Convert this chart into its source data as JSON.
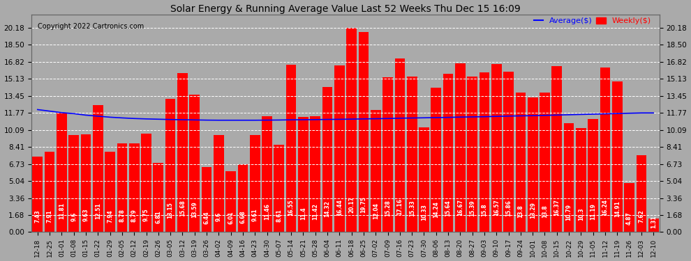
{
  "title": "Solar Energy & Running Average Value Last 52 Weeks Thu Dec 15 16:09",
  "copyright": "Copyright 2022 Cartronics.com",
  "bar_color": "#ff0000",
  "avg_line_color": "#0000ff",
  "background_color": "#aaaaaa",
  "plot_bg_color": "#aaaaaa",
  "grid_color": "#ffffff",
  "text_color": "#000000",
  "yticks": [
    0.0,
    1.68,
    3.36,
    5.04,
    6.73,
    8.41,
    10.09,
    11.77,
    13.45,
    15.13,
    16.82,
    18.5,
    20.18
  ],
  "categories": [
    "12-18",
    "12-25",
    "01-01",
    "01-08",
    "01-15",
    "01-22",
    "01-29",
    "02-05",
    "02-12",
    "02-19",
    "02-26",
    "03-05",
    "03-12",
    "03-19",
    "03-26",
    "04-02",
    "04-09",
    "04-16",
    "04-23",
    "04-30",
    "05-07",
    "05-14",
    "05-21",
    "05-28",
    "06-04",
    "06-11",
    "06-18",
    "06-25",
    "07-02",
    "07-09",
    "07-16",
    "07-23",
    "07-30",
    "08-06",
    "08-13",
    "08-20",
    "08-27",
    "09-03",
    "09-10",
    "09-17",
    "09-24",
    "10-01",
    "10-08",
    "10-15",
    "10-22",
    "10-29",
    "11-05",
    "11-12",
    "11-19",
    "11-26",
    "12-03",
    "12-10"
  ],
  "bar_values": [
    7.43,
    7.91,
    11.81,
    9.6,
    9.63,
    12.51,
    7.94,
    8.78,
    8.79,
    9.75,
    6.81,
    13.15,
    15.68,
    13.59,
    6.44,
    9.6,
    6.01,
    6.68,
    9.61,
    11.46,
    8.61,
    16.55,
    11.4,
    11.42,
    14.32,
    16.44,
    20.17,
    19.75,
    12.04,
    15.28,
    17.16,
    15.33,
    10.33,
    14.24,
    15.64,
    16.67,
    15.39,
    15.8,
    16.57,
    15.86,
    13.8,
    13.29,
    13.8,
    16.37,
    10.79,
    10.3,
    11.19,
    16.24,
    14.91,
    4.87,
    7.62,
    1.31
  ],
  "avg_values": [
    12.1,
    11.95,
    11.8,
    11.7,
    11.55,
    11.45,
    11.35,
    11.28,
    11.22,
    11.18,
    11.15,
    11.12,
    11.1,
    11.08,
    11.06,
    11.05,
    11.05,
    11.05,
    11.05,
    11.06,
    11.07,
    11.09,
    11.1,
    11.11,
    11.13,
    11.14,
    11.16,
    11.18,
    11.2,
    11.22,
    11.25,
    11.27,
    11.29,
    11.31,
    11.33,
    11.36,
    11.38,
    11.4,
    11.43,
    11.46,
    11.48,
    11.5,
    11.53,
    11.56,
    11.59,
    11.62,
    11.65,
    11.68,
    11.71,
    11.74,
    11.77,
    11.77
  ],
  "legend_avg_label": "Average($)",
  "legend_weekly_label": "Weekly($)",
  "legend_avg_color": "#0000ff",
  "legend_weekly_color": "#ff0000",
  "bar_label_fontsize": 5.5,
  "tick_fontsize": 7.5,
  "xtick_fontsize": 6.5,
  "title_fontsize": 10,
  "copyright_fontsize": 7,
  "ylim_max": 21.5
}
